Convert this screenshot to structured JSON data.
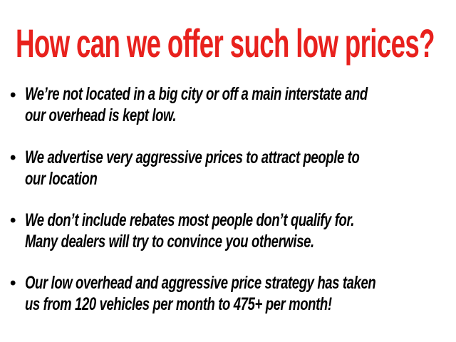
{
  "title": "How can we offer such low prices?",
  "title_color": "#e8211d",
  "bullets": [
    {
      "lines": [
        "We’re not located in a big city or off a main interstate and",
        "our overhead is kept low."
      ]
    },
    {
      "lines": [
        "We advertise very aggressive prices to attract people to",
        "our location"
      ]
    },
    {
      "lines": [
        "We don’t include rebates most people don’t qualify for.",
        "Many dealers will try to convince you otherwise."
      ]
    },
    {
      "lines": [
        "Our low overhead and aggressive price strategy has taken",
        "us from 120 vehicles per month to 475+ per month!"
      ]
    }
  ],
  "bullet_glyph": "•"
}
